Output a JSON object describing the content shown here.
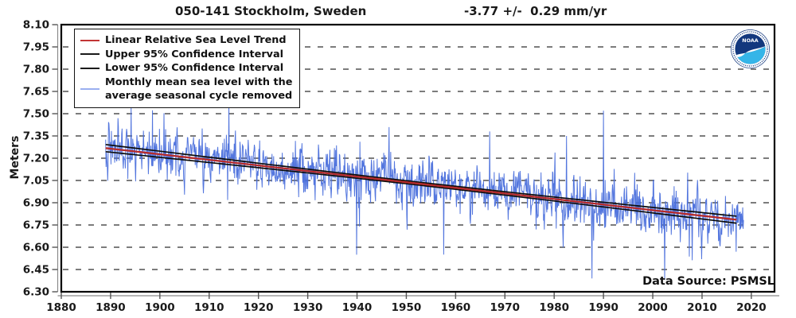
{
  "title": {
    "station": "050-141 Stockholm, Sweden",
    "trend": "-3.77 +/-  0.29 mm/yr"
  },
  "y_axis": {
    "label": "Meters"
  },
  "source_note": "Data Source: PSMSL",
  "noaa_logo_text": "NOAA",
  "legend": {
    "entries": [
      {
        "label": "Linear Relative Sea Level Trend",
        "swatch_color": "#c23535"
      },
      {
        "label": "Upper 95% Confidence Interval",
        "swatch_color": "#1a1a1a"
      },
      {
        "label": "Lower 95% Confidence Interval",
        "swatch_color": "#1a1a1a"
      },
      {
        "label_line1": "Monthly mean sea level with the",
        "label_line2": "average seasonal cycle removed",
        "swatch_color": "#9aaff0"
      }
    ]
  },
  "colors": {
    "monthly": "#4a6fdc",
    "trend": "#b52a2a",
    "ci": "#0d0d0d",
    "grid": "#6a6a6a",
    "frame": "#000000",
    "spine": "#8a8a8a",
    "tick": "#555555",
    "text": "#1a1a1a",
    "logo_navy": "#13387e",
    "logo_cyan": "#35b5e8"
  },
  "chart_data": {
    "type": "line",
    "title": "050-141 Stockholm, Sweden",
    "trend_annotation": "-3.77 +/- 0.29 mm/yr",
    "ylabel": "Meters",
    "ylim": [
      6.3,
      8.1
    ],
    "xlim": [
      1880,
      2024.7
    ],
    "y_ticks": [
      "8.10",
      "7.95",
      "7.80",
      "7.65",
      "7.50",
      "7.35",
      "7.20",
      "7.05",
      "6.90",
      "6.75",
      "6.60",
      "6.45",
      "6.30"
    ],
    "x_ticks": [
      1880,
      1890,
      1900,
      1910,
      1920,
      1930,
      1940,
      1950,
      1960,
      1970,
      1980,
      1990,
      2000,
      2010,
      2020
    ],
    "grid": "horizontal-dashed",
    "legend_position": "top-left",
    "series": [
      {
        "name": "Linear Relative Sea Level Trend",
        "type": "trend",
        "x": [
          1889.0,
          2018.5
        ],
        "y": [
          7.268,
          6.78
        ],
        "slope_mm_per_yr": -3.77
      },
      {
        "name": "Upper 95% Confidence Interval",
        "type": "ci-upper",
        "halfwidth_mid_m": 0.01,
        "halfwidth_end_m": 0.024
      },
      {
        "name": "Lower 95% Confidence Interval",
        "type": "ci-lower",
        "halfwidth_mid_m": 0.01,
        "halfwidth_end_m": 0.024
      },
      {
        "name": "Monthly mean sea level with the average seasonal cycle removed",
        "type": "monthly",
        "start_year": 1889.0,
        "end_year": 2018.42,
        "interval_months": 1,
        "noise_std_m": 0.082,
        "ar1": 0.32,
        "spike_prob": 0.02,
        "seed": 20180141,
        "value_range": [
          6.37,
          7.57
        ],
        "notable_points": [
          {
            "x": 1891.5,
            "y": 7.47
          },
          {
            "x": 1894.2,
            "y": 7.55
          },
          {
            "x": 1914.0,
            "y": 7.56
          },
          {
            "x": 1939.9,
            "y": 6.55
          },
          {
            "x": 1966.9,
            "y": 7.38
          },
          {
            "x": 1982.5,
            "y": 7.35
          },
          {
            "x": 1990.0,
            "y": 7.52
          },
          {
            "x": 2002.4,
            "y": 6.38
          },
          {
            "x": 2009.9,
            "y": 6.52
          },
          {
            "x": 2016.9,
            "y": 6.57
          }
        ]
      }
    ]
  }
}
